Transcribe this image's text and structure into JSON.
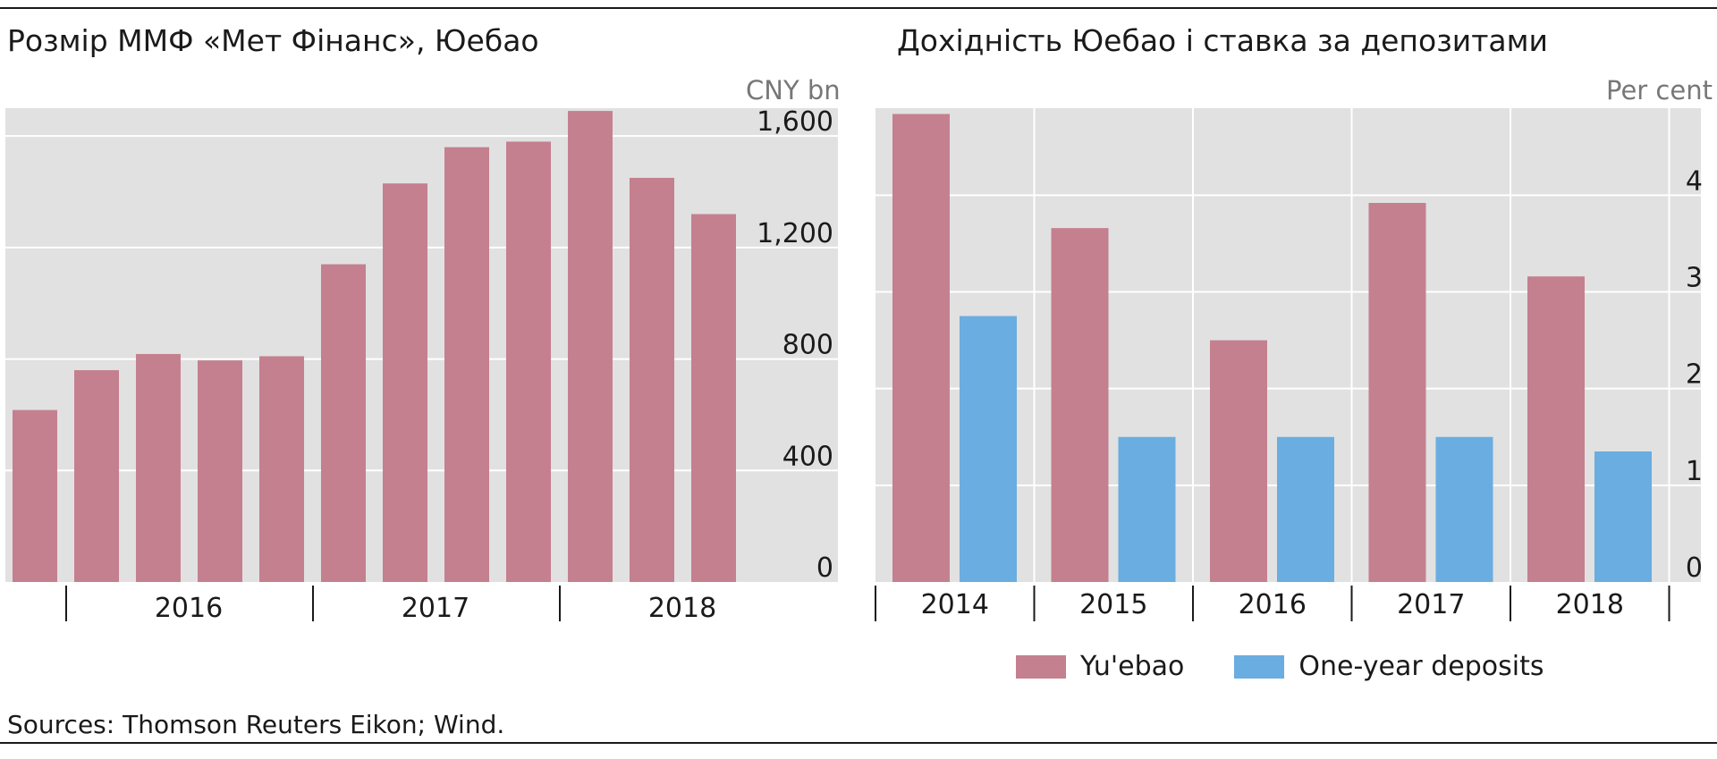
{
  "colors": {
    "yuebao": "#c4808f",
    "deposits": "#6aade0",
    "panel_bg": "#e1e1e1",
    "grid": "#ffffff"
  },
  "chart_data": [
    {
      "type": "bar",
      "title": "Розмір ММФ «Мет Фінанс», Юебао",
      "ylabel": "CNY bn",
      "ylim": [
        0,
        1700
      ],
      "yticks": [
        0,
        400,
        800,
        1200,
        1600
      ],
      "ytick_labels": [
        "0",
        "400",
        "800",
        "1,200",
        "1,600"
      ],
      "year_labels": [
        "2016",
        "2017",
        "2018"
      ],
      "series": [
        {
          "values": [
            617,
            760,
            818,
            795,
            810,
            1140,
            1430,
            1560,
            1580,
            1690,
            1450,
            1320
          ]
        }
      ]
    },
    {
      "type": "bar",
      "title": "Дохідність  Юебао і ставка за депозитами",
      "ylabel": "Per cent",
      "ylim": [
        0,
        4.9
      ],
      "yticks": [
        0,
        1,
        2,
        3,
        4
      ],
      "ytick_labels": [
        "0",
        "1",
        "2",
        "3",
        "4"
      ],
      "categories": [
        "2014",
        "2015",
        "2016",
        "2017",
        "2018"
      ],
      "series": [
        {
          "name": "Yu'ebao",
          "values": [
            4.84,
            3.66,
            2.5,
            3.92,
            3.16
          ]
        },
        {
          "name": "One-year deposits",
          "values": [
            2.75,
            1.5,
            1.5,
            1.5,
            1.35
          ]
        }
      ]
    }
  ],
  "legend": {
    "series1": "Yu'ebao",
    "series2": "One-year deposits"
  },
  "source": "Sources: Thomson Reuters Eikon; Wind."
}
